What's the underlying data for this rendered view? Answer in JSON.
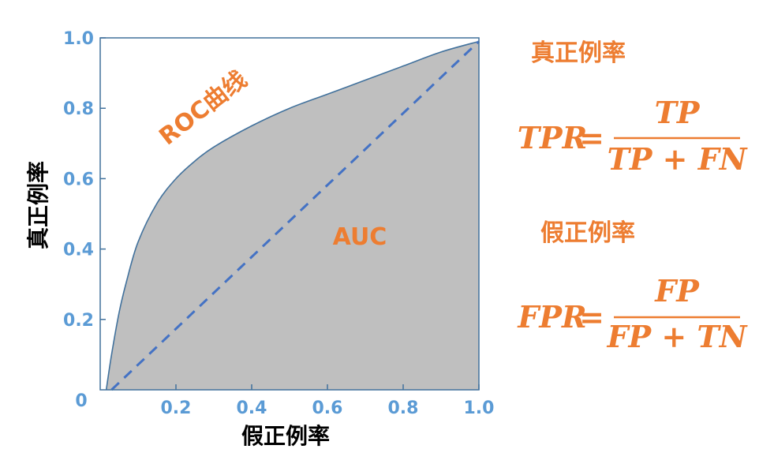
{
  "colors": {
    "accent": "#ED7D31",
    "axis": "#5B9BD5",
    "frame": "#41719C",
    "dashed": "#4472C4",
    "fill": "#BFBFBF",
    "text": "#000000"
  },
  "chart_data": {
    "type": "area",
    "xlabel": "假正例率",
    "ylabel": "真正例率",
    "xlim": [
      0,
      1
    ],
    "ylim": [
      0,
      1
    ],
    "x_ticks": [
      "0.2",
      "0.4",
      "0.6",
      "0.8",
      "1.0"
    ],
    "y_ticks": [
      "0.2",
      "0.4",
      "0.6",
      "0.8",
      "1.0"
    ],
    "origin_label": "0",
    "grid": false,
    "series": [
      {
        "name": "ROC曲线",
        "style": "solid",
        "x": [
          0.016,
          0.03,
          0.05,
          0.07,
          0.1,
          0.15,
          0.2,
          0.25,
          0.3,
          0.4,
          0.5,
          0.6,
          0.7,
          0.8,
          0.9,
          1.0
        ],
        "y": [
          0.0,
          0.1,
          0.22,
          0.31,
          0.42,
          0.53,
          0.6,
          0.65,
          0.69,
          0.75,
          0.8,
          0.84,
          0.88,
          0.92,
          0.96,
          0.99
        ]
      },
      {
        "name": "",
        "style": "dashed",
        "x": [
          0.03,
          1.0
        ],
        "y": [
          0.0,
          0.99
        ]
      }
    ],
    "annotations": {
      "roc_label": "ROC曲线",
      "auc_label": "AUC"
    }
  },
  "formulas": {
    "tpr_title": "真正例率",
    "tpr_lhs": "TPR",
    "equals": "=",
    "tpr_num": "TP",
    "tpr_den": "TP + FN",
    "fpr_title": "假正例率",
    "fpr_lhs": "FPR",
    "fpr_num": "FP",
    "fpr_den": "FP + TN"
  }
}
